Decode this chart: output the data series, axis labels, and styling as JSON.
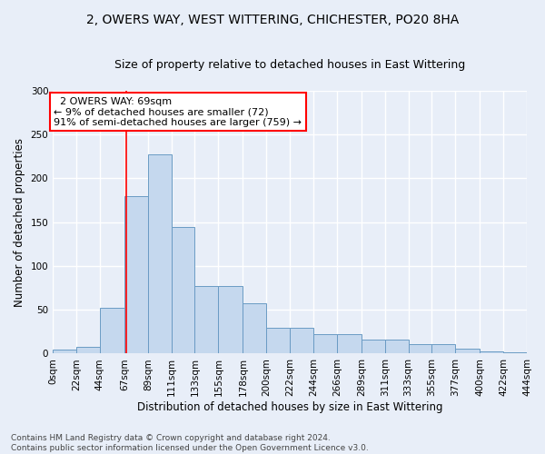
{
  "title_line1": "2, OWERS WAY, WEST WITTERING, CHICHESTER, PO20 8HA",
  "title_line2": "Size of property relative to detached houses in East Wittering",
  "xlabel": "Distribution of detached houses by size in East Wittering",
  "ylabel": "Number of detached properties",
  "footnote": "Contains HM Land Registry data © Crown copyright and database right 2024.\nContains public sector information licensed under the Open Government Licence v3.0.",
  "bin_edges": [
    0,
    22,
    44,
    67,
    89,
    111,
    133,
    155,
    178,
    200,
    222,
    244,
    266,
    289,
    311,
    333,
    355,
    377,
    400,
    422,
    444
  ],
  "bin_labels": [
    "0sqm",
    "22sqm",
    "44sqm",
    "67sqm",
    "89sqm",
    "111sqm",
    "133sqm",
    "155sqm",
    "178sqm",
    "200sqm",
    "222sqm",
    "244sqm",
    "266sqm",
    "289sqm",
    "311sqm",
    "333sqm",
    "355sqm",
    "377sqm",
    "400sqm",
    "422sqm",
    "444sqm"
  ],
  "bar_heights": [
    5,
    8,
    52,
    180,
    227,
    145,
    77,
    77,
    57,
    30,
    30,
    22,
    22,
    16,
    16,
    11,
    11,
    6,
    3,
    2,
    3
  ],
  "bar_color": "#c5d8ee",
  "bar_edge_color": "#6a9bc4",
  "property_value": 69,
  "annotation_text": "  2 OWERS WAY: 69sqm\n← 9% of detached houses are smaller (72)\n91% of semi-detached houses are larger (759) →",
  "annotation_box_color": "white",
  "annotation_box_edge_color": "red",
  "vline_color": "red",
  "ylim": [
    0,
    300
  ],
  "yticks": [
    0,
    50,
    100,
    150,
    200,
    250,
    300
  ],
  "bg_color": "#e8eef8",
  "grid_color": "white",
  "title_fontsize": 10,
  "subtitle_fontsize": 9,
  "axis_label_fontsize": 8.5,
  "tick_fontsize": 7.5,
  "annotation_fontsize": 8,
  "footnote_fontsize": 6.5
}
